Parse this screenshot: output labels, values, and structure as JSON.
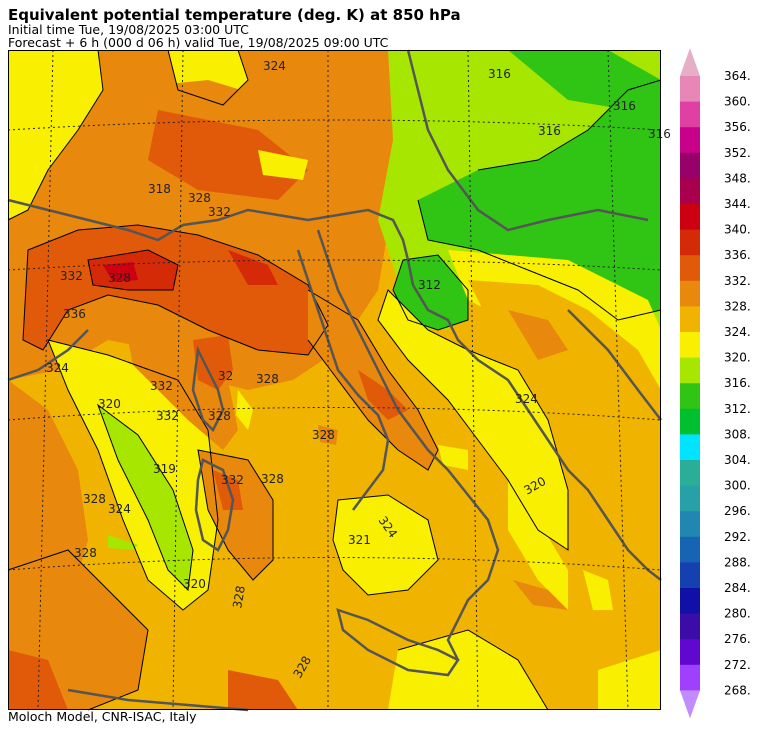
{
  "header": {
    "title": "Equivalent potential temperature (deg. K) at 850 hPa",
    "initial_time": "Initial time  Tue, 19/08/2025  03:00 UTC",
    "forecast": "Forecast  +   6 h  (000 d 06 h)  valid Tue, 19/08/2025 09:00 UTC"
  },
  "footer": {
    "credit": "Moloch Model, CNR-ISAC, Italy"
  },
  "colorbar": {
    "levels": [
      "364.",
      "360.",
      "356.",
      "352.",
      "348.",
      "344.",
      "340.",
      "336.",
      "332.",
      "328.",
      "324.",
      "320.",
      "316.",
      "312.",
      "308.",
      "304.",
      "300.",
      "296.",
      "292.",
      "288.",
      "284.",
      "280.",
      "276.",
      "272.",
      "268."
    ],
    "colors_top_to_bottom": [
      "#e5b0c6",
      "#e887b6",
      "#e040a4",
      "#c8008a",
      "#98006a",
      "#a8004c",
      "#cc0010",
      "#d42a08",
      "#e05a0a",
      "#e8880c",
      "#f0b400",
      "#f8f000",
      "#a6e600",
      "#30c414",
      "#00c030",
      "#00e4ff",
      "#2aae98",
      "#28a0a8",
      "#2088b0",
      "#1864b4",
      "#1440b0",
      "#1010a8",
      "#3c0ca8",
      "#6008d0",
      "#a040ff",
      "#c08cff"
    ]
  },
  "map": {
    "contour_labels": [
      {
        "text": "324"
      },
      {
        "text": "316"
      },
      {
        "text": "316"
      },
      {
        "text": "316"
      },
      {
        "text": "316"
      },
      {
        "text": "318"
      },
      {
        "text": "328"
      },
      {
        "text": "332"
      },
      {
        "text": "312"
      },
      {
        "text": "332"
      },
      {
        "text": "328"
      },
      {
        "text": "336"
      },
      {
        "text": "32"
      },
      {
        "text": "324"
      },
      {
        "text": "328"
      },
      {
        "text": "332"
      },
      {
        "text": "332"
      },
      {
        "text": "328"
      },
      {
        "text": "324"
      },
      {
        "text": "320"
      },
      {
        "text": "328"
      },
      {
        "text": "328"
      },
      {
        "text": "319"
      },
      {
        "text": "332"
      },
      {
        "text": "328"
      },
      {
        "text": "324"
      },
      {
        "text": "320"
      },
      {
        "text": "324"
      },
      {
        "text": "321"
      },
      {
        "text": "328"
      },
      {
        "text": "320"
      },
      {
        "text": "328"
      },
      {
        "text": "328"
      }
    ]
  }
}
